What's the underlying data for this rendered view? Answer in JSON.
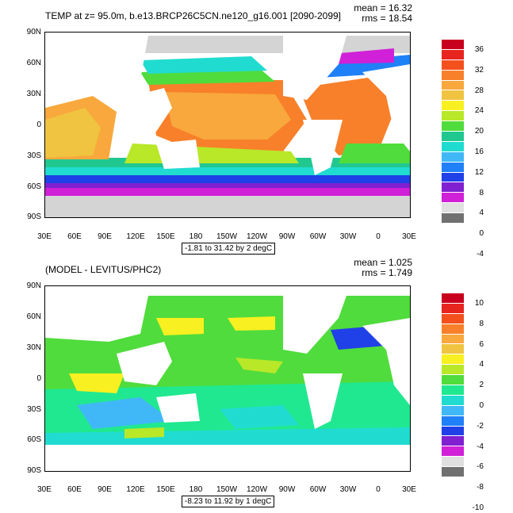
{
  "top_panel": {
    "title": "TEMP at z=  95.0m, b.e13.BRCP26C5CN.ne120_g16.001 [2090-2099]",
    "mean": "mean = 16.32",
    "rms": "rms = 18.54",
    "range": "-1.81 to 31.42 by 2 degC",
    "colorbar_labels": [
      "36",
      "32",
      "28",
      "24",
      "20",
      "16",
      "12",
      "8",
      "4",
      "0",
      "-4"
    ],
    "colorbar_colors": [
      "#c8001e",
      "#e8241e",
      "#f4501e",
      "#f8802a",
      "#f8a83c",
      "#f0c440",
      "#f8f020",
      "#b8e828",
      "#50dc3c",
      "#20c890",
      "#20dcd0",
      "#40b8f8",
      "#2080f8",
      "#2040e8",
      "#8020d0",
      "#d020d8",
      "#e0e0e0",
      "#707070"
    ]
  },
  "bottom_panel": {
    "title": "(MODEL - LEVITUS/PHC2)",
    "mean": "mean = 1.025",
    "rms": "rms = 1.749",
    "range": "-8.23 to 11.92 by 1 degC",
    "colorbar_labels": [
      "10",
      "8",
      "6",
      "4",
      "2",
      "0",
      "-2",
      "-4",
      "-6",
      "-8",
      "-10"
    ],
    "colorbar_colors": [
      "#c8001e",
      "#e8241e",
      "#f4501e",
      "#f8802a",
      "#f8a83c",
      "#f0c440",
      "#f8f020",
      "#b8e828",
      "#50dc3c",
      "#20e890",
      "#20dcd0",
      "#40b8f8",
      "#2080f8",
      "#2040e8",
      "#8020d0",
      "#d020d8",
      "#e0e0e0",
      "#707070"
    ]
  },
  "axes": {
    "lat_labels": [
      "90N",
      "60N",
      "30N",
      "0",
      "30S",
      "60S",
      "90S"
    ],
    "lon_labels": [
      "30E",
      "60E",
      "90E",
      "120E",
      "150E",
      "180",
      "150W",
      "120W",
      "90W",
      "60W",
      "30W",
      "0",
      "30E"
    ]
  }
}
